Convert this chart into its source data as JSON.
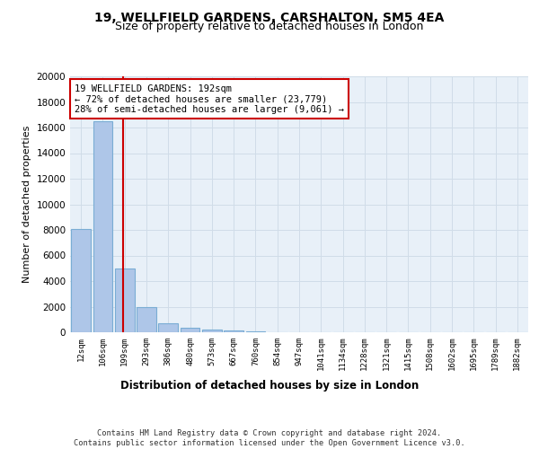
{
  "title1": "19, WELLFIELD GARDENS, CARSHALTON, SM5 4EA",
  "title2": "Size of property relative to detached houses in London",
  "xlabel": "Distribution of detached houses by size in London",
  "ylabel": "Number of detached properties",
  "footnote": "Contains HM Land Registry data © Crown copyright and database right 2024.\nContains public sector information licensed under the Open Government Licence v3.0.",
  "bar_labels": [
    "12sqm",
    "106sqm",
    "199sqm",
    "293sqm",
    "386sqm",
    "480sqm",
    "573sqm",
    "667sqm",
    "760sqm",
    "854sqm",
    "947sqm",
    "1041sqm",
    "1134sqm",
    "1228sqm",
    "1321sqm",
    "1415sqm",
    "1508sqm",
    "1602sqm",
    "1695sqm",
    "1789sqm",
    "1882sqm"
  ],
  "bar_values": [
    8050,
    16500,
    5000,
    2000,
    700,
    350,
    200,
    150,
    100,
    0,
    0,
    0,
    0,
    0,
    0,
    0,
    0,
    0,
    0,
    0,
    0
  ],
  "bar_color": "#aec6e8",
  "bar_edge_color": "#7aadd4",
  "annotation_text": "19 WELLFIELD GARDENS: 192sqm\n← 72% of detached houses are smaller (23,779)\n28% of semi-detached houses are larger (9,061) →",
  "annotation_box_color": "#cc0000",
  "ylim": [
    0,
    20000
  ],
  "yticks": [
    0,
    2000,
    4000,
    6000,
    8000,
    10000,
    12000,
    14000,
    16000,
    18000,
    20000
  ],
  "grid_color": "#d0dce8",
  "background_color": "#e8f0f8",
  "title1_fontsize": 10,
  "title2_fontsize": 9,
  "annotation_fontsize": 7.5,
  "red_line_x": 1.93
}
